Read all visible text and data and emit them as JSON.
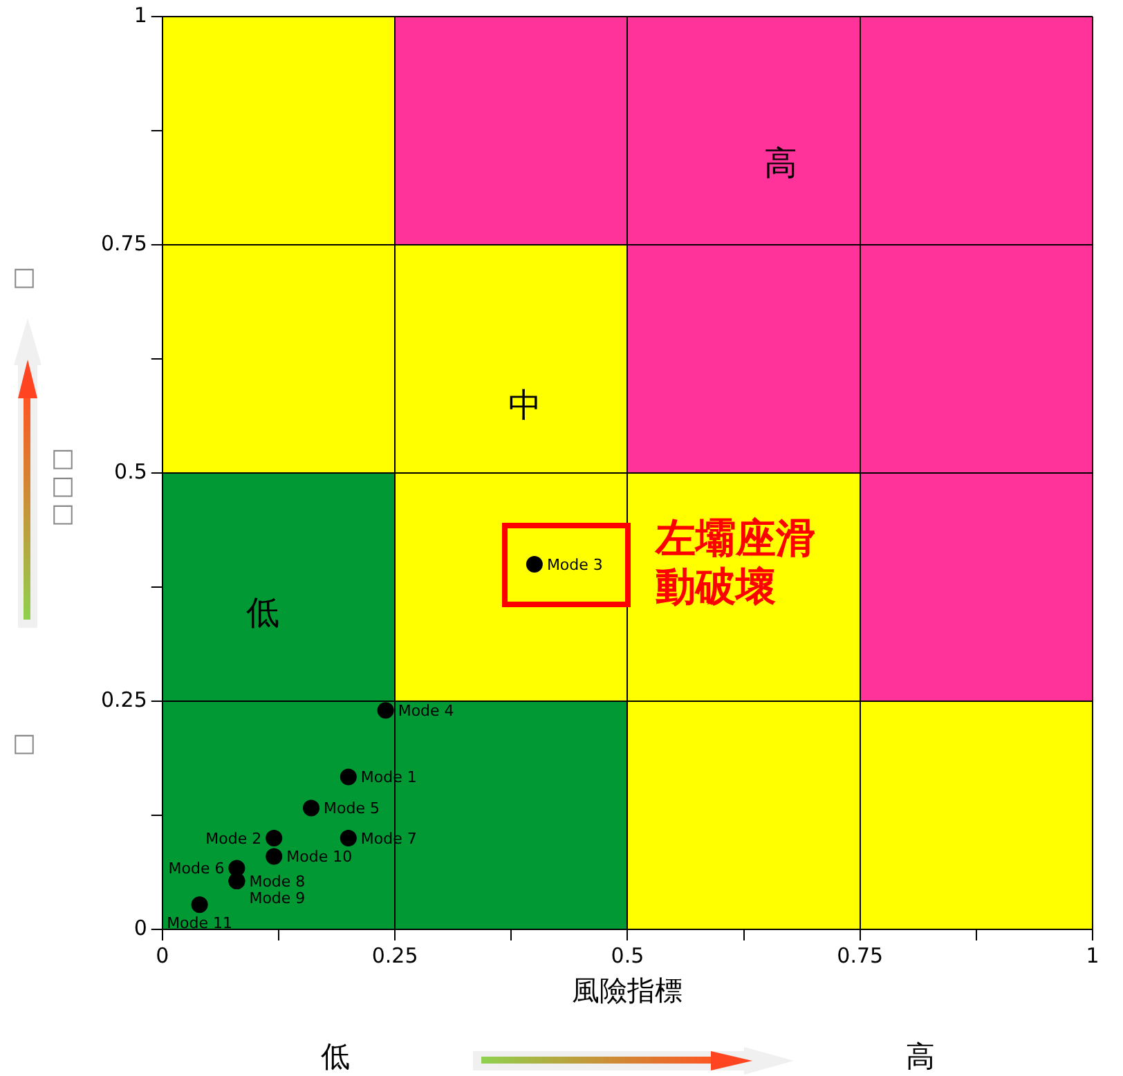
{
  "chart_data": {
    "type": "scatter",
    "xlabel": "風險指標",
    "ylabel": "□□□",
    "x": [
      0.2,
      0.12,
      0.4,
      0.24,
      0.16,
      0.08,
      0.2,
      0.08,
      0.08,
      0.12,
      0.04
    ],
    "values": [
      0.167,
      0.1,
      0.4,
      0.24,
      0.133,
      0.067,
      0.1,
      0.053,
      0.053,
      0.08,
      0.027
    ],
    "value_labels": [
      "Mode 1",
      "Mode 2",
      "Mode 3",
      "Mode 4",
      "Mode 5",
      "Mode 6",
      "Mode 7",
      "Mode 8",
      "Mode 9",
      "Mode 10",
      "Mode 11"
    ],
    "color": "#000000",
    "marker": "circle",
    "legend": false,
    "grid": true,
    "xlim": [
      0,
      1
    ],
    "ylim": [
      0,
      1
    ],
    "xticks": [
      0,
      {
        "value": 0.125,
        "label": null
      },
      0.25,
      {
        "value": 0.375,
        "label": null
      },
      0.5,
      {
        "value": 0.625,
        "label": null
      },
      0.75,
      {
        "value": 0.875,
        "label": null
      },
      1
    ],
    "yticks": [
      0,
      {
        "value": 0.125,
        "label": null
      },
      0.25,
      {
        "value": 0.375,
        "label": null
      },
      0.5,
      {
        "value": 0.625,
        "label": null
      },
      0.75,
      {
        "value": 0.875,
        "label": null
      },
      1
    ],
    "annotations": [
      "□",
      "□",
      "低",
      "高",
      "低",
      "中",
      "高",
      "左壩座滑動破壞"
    ]
  }
}
